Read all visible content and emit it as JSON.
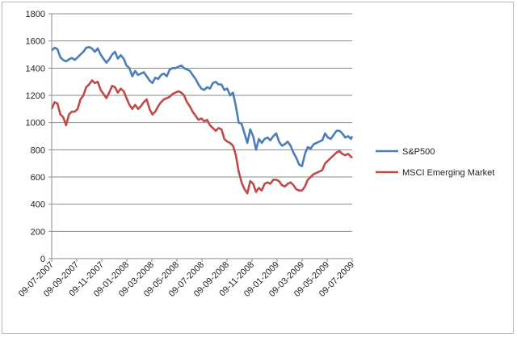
{
  "chart_data": {
    "type": "line",
    "title": "",
    "xlabel": "",
    "ylabel": "",
    "ylim": [
      0,
      1800
    ],
    "yticks": [
      0,
      200,
      400,
      600,
      800,
      1000,
      1200,
      1400,
      1600,
      1800
    ],
    "grid": "horizontal",
    "legend_position": "right",
    "x_tick_labels": [
      "09-07-2007",
      "09-09-2007",
      "09-11-2007",
      "09-01-2008",
      "09-03-2008",
      "09-05-2008",
      "09-07-2008",
      "09-09-2008",
      "09-11-2008",
      "09-01-2009",
      "09-03-2009",
      "09-05-2009",
      "09-07-2009"
    ],
    "x_range": [
      "2007-07-09",
      "2009-07-09"
    ],
    "series": [
      {
        "name": "S&P500",
        "color": "#4a7ebb",
        "points": [
          [
            "2007-07-09",
            1530
          ],
          [
            "2007-07-16",
            1550
          ],
          [
            "2007-07-23",
            1540
          ],
          [
            "2007-07-30",
            1480
          ],
          [
            "2007-08-06",
            1460
          ],
          [
            "2007-08-13",
            1450
          ],
          [
            "2007-08-20",
            1465
          ],
          [
            "2007-08-27",
            1475
          ],
          [
            "2007-09-03",
            1460
          ],
          [
            "2007-09-10",
            1480
          ],
          [
            "2007-09-17",
            1500
          ],
          [
            "2007-09-24",
            1520
          ],
          [
            "2007-10-01",
            1550
          ],
          [
            "2007-10-08",
            1555
          ],
          [
            "2007-10-15",
            1545
          ],
          [
            "2007-10-22",
            1520
          ],
          [
            "2007-10-29",
            1545
          ],
          [
            "2007-11-05",
            1500
          ],
          [
            "2007-11-12",
            1470
          ],
          [
            "2007-11-19",
            1440
          ],
          [
            "2007-11-26",
            1465
          ],
          [
            "2007-12-03",
            1500
          ],
          [
            "2007-12-10",
            1520
          ],
          [
            "2007-12-17",
            1470
          ],
          [
            "2007-12-24",
            1495
          ],
          [
            "2007-12-31",
            1470
          ],
          [
            "2008-01-07",
            1420
          ],
          [
            "2008-01-14",
            1400
          ],
          [
            "2008-01-21",
            1340
          ],
          [
            "2008-01-28",
            1380
          ],
          [
            "2008-02-04",
            1350
          ],
          [
            "2008-02-11",
            1360
          ],
          [
            "2008-02-18",
            1370
          ],
          [
            "2008-02-25",
            1340
          ],
          [
            "2008-03-03",
            1310
          ],
          [
            "2008-03-10",
            1290
          ],
          [
            "2008-03-17",
            1330
          ],
          [
            "2008-03-24",
            1320
          ],
          [
            "2008-03-31",
            1350
          ],
          [
            "2008-04-07",
            1360
          ],
          [
            "2008-04-14",
            1340
          ],
          [
            "2008-04-21",
            1390
          ],
          [
            "2008-04-28",
            1400
          ],
          [
            "2008-05-05",
            1400
          ],
          [
            "2008-05-12",
            1410
          ],
          [
            "2008-05-19",
            1420
          ],
          [
            "2008-05-26",
            1400
          ],
          [
            "2008-06-02",
            1390
          ],
          [
            "2008-06-09",
            1380
          ],
          [
            "2008-06-16",
            1350
          ],
          [
            "2008-06-23",
            1320
          ],
          [
            "2008-06-30",
            1280
          ],
          [
            "2008-07-07",
            1250
          ],
          [
            "2008-07-14",
            1240
          ],
          [
            "2008-07-21",
            1260
          ],
          [
            "2008-07-28",
            1250
          ],
          [
            "2008-08-04",
            1290
          ],
          [
            "2008-08-11",
            1300
          ],
          [
            "2008-08-18",
            1280
          ],
          [
            "2008-08-25",
            1280
          ],
          [
            "2008-09-01",
            1240
          ],
          [
            "2008-09-08",
            1250
          ],
          [
            "2008-09-15",
            1200
          ],
          [
            "2008-09-22",
            1220
          ],
          [
            "2008-09-29",
            1120
          ],
          [
            "2008-10-06",
            1000
          ],
          [
            "2008-10-13",
            990
          ],
          [
            "2008-10-20",
            920
          ],
          [
            "2008-10-27",
            850
          ],
          [
            "2008-11-03",
            950
          ],
          [
            "2008-11-10",
            900
          ],
          [
            "2008-11-17",
            800
          ],
          [
            "2008-11-24",
            880
          ],
          [
            "2008-12-01",
            850
          ],
          [
            "2008-12-08",
            880
          ],
          [
            "2008-12-15",
            890
          ],
          [
            "2008-12-22",
            870
          ],
          [
            "2008-12-29",
            900
          ],
          [
            "2009-01-05",
            920
          ],
          [
            "2009-01-12",
            860
          ],
          [
            "2009-01-19",
            830
          ],
          [
            "2009-01-26",
            840
          ],
          [
            "2009-02-02",
            860
          ],
          [
            "2009-02-09",
            830
          ],
          [
            "2009-02-16",
            780
          ],
          [
            "2009-02-23",
            740
          ],
          [
            "2009-03-02",
            690
          ],
          [
            "2009-03-09",
            680
          ],
          [
            "2009-03-16",
            770
          ],
          [
            "2009-03-23",
            820
          ],
          [
            "2009-03-30",
            810
          ],
          [
            "2009-04-06",
            840
          ],
          [
            "2009-04-13",
            850
          ],
          [
            "2009-04-20",
            860
          ],
          [
            "2009-04-27",
            870
          ],
          [
            "2009-05-04",
            920
          ],
          [
            "2009-05-11",
            890
          ],
          [
            "2009-05-18",
            880
          ],
          [
            "2009-05-25",
            910
          ],
          [
            "2009-06-01",
            940
          ],
          [
            "2009-06-08",
            940
          ],
          [
            "2009-06-15",
            920
          ],
          [
            "2009-06-22",
            890
          ],
          [
            "2009-06-29",
            900
          ],
          [
            "2009-07-06",
            880
          ],
          [
            "2009-07-09",
            900
          ]
        ]
      },
      {
        "name": "MSCI Emerging Market",
        "color": "#be4b48",
        "points": [
          [
            "2007-07-09",
            1100
          ],
          [
            "2007-07-16",
            1150
          ],
          [
            "2007-07-23",
            1140
          ],
          [
            "2007-07-30",
            1060
          ],
          [
            "2007-08-06",
            1040
          ],
          [
            "2007-08-13",
            980
          ],
          [
            "2007-08-20",
            1060
          ],
          [
            "2007-08-27",
            1080
          ],
          [
            "2007-09-03",
            1080
          ],
          [
            "2007-09-10",
            1100
          ],
          [
            "2007-09-17",
            1170
          ],
          [
            "2007-09-24",
            1200
          ],
          [
            "2007-10-01",
            1260
          ],
          [
            "2007-10-08",
            1280
          ],
          [
            "2007-10-15",
            1310
          ],
          [
            "2007-10-22",
            1290
          ],
          [
            "2007-10-29",
            1300
          ],
          [
            "2007-11-05",
            1240
          ],
          [
            "2007-11-12",
            1210
          ],
          [
            "2007-11-19",
            1180
          ],
          [
            "2007-11-26",
            1220
          ],
          [
            "2007-12-03",
            1270
          ],
          [
            "2007-12-10",
            1260
          ],
          [
            "2007-12-17",
            1220
          ],
          [
            "2007-12-24",
            1250
          ],
          [
            "2007-12-31",
            1230
          ],
          [
            "2008-01-07",
            1180
          ],
          [
            "2008-01-14",
            1130
          ],
          [
            "2008-01-21",
            1100
          ],
          [
            "2008-01-28",
            1130
          ],
          [
            "2008-02-04",
            1100
          ],
          [
            "2008-02-11",
            1120
          ],
          [
            "2008-02-18",
            1150
          ],
          [
            "2008-02-25",
            1170
          ],
          [
            "2008-03-03",
            1100
          ],
          [
            "2008-03-10",
            1060
          ],
          [
            "2008-03-17",
            1080
          ],
          [
            "2008-03-24",
            1120
          ],
          [
            "2008-03-31",
            1150
          ],
          [
            "2008-04-07",
            1170
          ],
          [
            "2008-04-14",
            1180
          ],
          [
            "2008-04-21",
            1190
          ],
          [
            "2008-04-28",
            1210
          ],
          [
            "2008-05-05",
            1220
          ],
          [
            "2008-05-12",
            1230
          ],
          [
            "2008-05-19",
            1220
          ],
          [
            "2008-05-26",
            1200
          ],
          [
            "2008-06-02",
            1150
          ],
          [
            "2008-06-09",
            1120
          ],
          [
            "2008-06-16",
            1080
          ],
          [
            "2008-06-23",
            1050
          ],
          [
            "2008-06-30",
            1020
          ],
          [
            "2008-07-07",
            1030
          ],
          [
            "2008-07-14",
            1010
          ],
          [
            "2008-07-21",
            1020
          ],
          [
            "2008-07-28",
            980
          ],
          [
            "2008-08-04",
            960
          ],
          [
            "2008-08-11",
            940
          ],
          [
            "2008-08-18",
            960
          ],
          [
            "2008-08-25",
            950
          ],
          [
            "2008-09-01",
            880
          ],
          [
            "2008-09-08",
            860
          ],
          [
            "2008-09-15",
            850
          ],
          [
            "2008-09-22",
            830
          ],
          [
            "2008-09-29",
            760
          ],
          [
            "2008-10-06",
            640
          ],
          [
            "2008-10-13",
            560
          ],
          [
            "2008-10-20",
            510
          ],
          [
            "2008-10-27",
            480
          ],
          [
            "2008-11-03",
            570
          ],
          [
            "2008-11-10",
            550
          ],
          [
            "2008-11-17",
            490
          ],
          [
            "2008-11-24",
            520
          ],
          [
            "2008-12-01",
            500
          ],
          [
            "2008-12-08",
            550
          ],
          [
            "2008-12-15",
            560
          ],
          [
            "2008-12-22",
            550
          ],
          [
            "2008-12-29",
            580
          ],
          [
            "2009-01-05",
            580
          ],
          [
            "2009-01-12",
            570
          ],
          [
            "2009-01-19",
            540
          ],
          [
            "2009-01-26",
            530
          ],
          [
            "2009-02-02",
            550
          ],
          [
            "2009-02-09",
            560
          ],
          [
            "2009-02-16",
            540
          ],
          [
            "2009-02-23",
            510
          ],
          [
            "2009-03-02",
            500
          ],
          [
            "2009-03-09",
            500
          ],
          [
            "2009-03-16",
            530
          ],
          [
            "2009-03-23",
            580
          ],
          [
            "2009-03-30",
            600
          ],
          [
            "2009-04-06",
            620
          ],
          [
            "2009-04-13",
            630
          ],
          [
            "2009-04-20",
            640
          ],
          [
            "2009-04-27",
            650
          ],
          [
            "2009-05-04",
            700
          ],
          [
            "2009-05-11",
            720
          ],
          [
            "2009-05-18",
            740
          ],
          [
            "2009-05-25",
            760
          ],
          [
            "2009-06-01",
            780
          ],
          [
            "2009-06-08",
            790
          ],
          [
            "2009-06-15",
            770
          ],
          [
            "2009-06-22",
            760
          ],
          [
            "2009-06-29",
            770
          ],
          [
            "2009-07-06",
            750
          ],
          [
            "2009-07-09",
            740
          ]
        ]
      }
    ]
  }
}
